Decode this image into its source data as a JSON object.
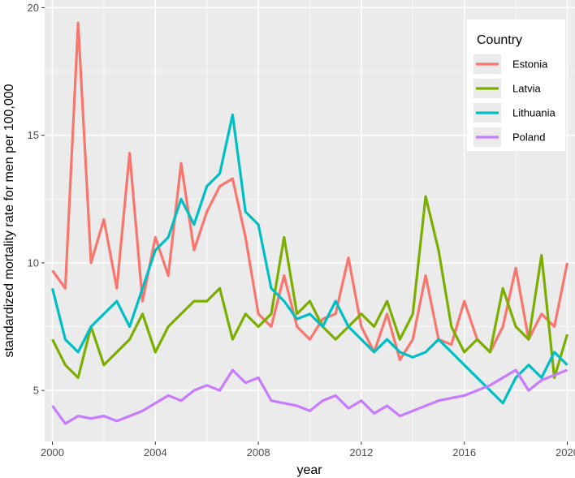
{
  "chart_data": {
    "type": "line",
    "title": "",
    "xlabel": "year",
    "ylabel": "standardized mortality rate for men per 100,000",
    "xlim": [
      1999.7,
      2020.3
    ],
    "ylim": [
      3.0,
      20.3
    ],
    "x_ticks": [
      2000,
      2004,
      2008,
      2012,
      2016,
      2020
    ],
    "x_tick_labels": [
      "2000",
      "2004",
      "2008",
      "2012",
      "2016",
      "2020"
    ],
    "y_ticks": [
      5,
      10,
      15,
      20
    ],
    "y_tick_labels": [
      "5",
      "10",
      "15",
      "20"
    ],
    "grid": true,
    "legend": {
      "title": "Country",
      "position": "top-right"
    },
    "x": [
      2000,
      2000.5,
      2001,
      2001.5,
      2002,
      2002.5,
      2003,
      2003.5,
      2004,
      2004.5,
      2005,
      2005.5,
      2006,
      2006.5,
      2007,
      2007.5,
      2008,
      2008.5,
      2009,
      2009.5,
      2010,
      2010.5,
      2011,
      2011.5,
      2012,
      2012.5,
      2013,
      2013.5,
      2014,
      2014.5,
      2015,
      2015.5,
      2016,
      2016.5,
      2017,
      2017.5,
      2018,
      2018.5,
      2019,
      2019.5,
      2020
    ],
    "series": [
      {
        "name": "Estonia",
        "color": "#F8766D",
        "values": [
          9.7,
          9.0,
          19.4,
          10.0,
          11.7,
          9.0,
          14.3,
          8.5,
          11.0,
          9.5,
          13.9,
          10.5,
          12.0,
          13.0,
          13.3,
          11.0,
          8.0,
          7.5,
          9.5,
          7.5,
          7.0,
          7.8,
          8.0,
          10.2,
          7.5,
          6.5,
          8.0,
          6.2,
          7.0,
          9.5,
          7.0,
          6.8,
          8.5,
          7.0,
          6.5,
          7.5,
          9.8,
          7.0,
          8.0,
          7.5,
          10.0
        ]
      },
      {
        "name": "Latvia",
        "color": "#7CAE00",
        "values": [
          7.0,
          6.0,
          5.5,
          7.5,
          6.0,
          6.5,
          7.0,
          8.0,
          6.5,
          7.5,
          8.0,
          8.5,
          8.5,
          9.0,
          7.0,
          8.0,
          7.5,
          8.0,
          11.0,
          8.0,
          8.5,
          7.5,
          7.0,
          7.5,
          8.0,
          7.5,
          8.5,
          7.0,
          8.0,
          12.6,
          10.5,
          7.5,
          6.5,
          7.0,
          6.5,
          9.0,
          7.5,
          7.0,
          10.3,
          5.5,
          7.2
        ]
      },
      {
        "name": "Lithuania",
        "color": "#00BFC4",
        "values": [
          9.0,
          7.0,
          6.5,
          7.5,
          8.0,
          8.5,
          7.5,
          9.0,
          10.5,
          11.0,
          12.5,
          11.5,
          13.0,
          13.5,
          15.8,
          12.0,
          11.5,
          9.0,
          8.5,
          7.8,
          8.0,
          7.5,
          8.5,
          7.5,
          7.0,
          6.5,
          7.0,
          6.5,
          6.3,
          6.5,
          7.0,
          6.5,
          6.0,
          5.5,
          5.0,
          4.5,
          5.5,
          6.0,
          5.5,
          6.5,
          6.0
        ]
      },
      {
        "name": "Poland",
        "color": "#C77CFF",
        "values": [
          4.4,
          3.7,
          4.0,
          3.9,
          4.0,
          3.8,
          4.0,
          4.2,
          4.5,
          4.8,
          4.6,
          5.0,
          5.2,
          5.0,
          5.8,
          5.3,
          5.5,
          4.6,
          4.5,
          4.4,
          4.2,
          4.6,
          4.8,
          4.3,
          4.6,
          4.1,
          4.4,
          4.0,
          4.2,
          4.4,
          4.6,
          4.7,
          4.8,
          5.0,
          5.2,
          5.5,
          5.8,
          5.0,
          5.4,
          5.6,
          5.8
        ]
      }
    ]
  }
}
